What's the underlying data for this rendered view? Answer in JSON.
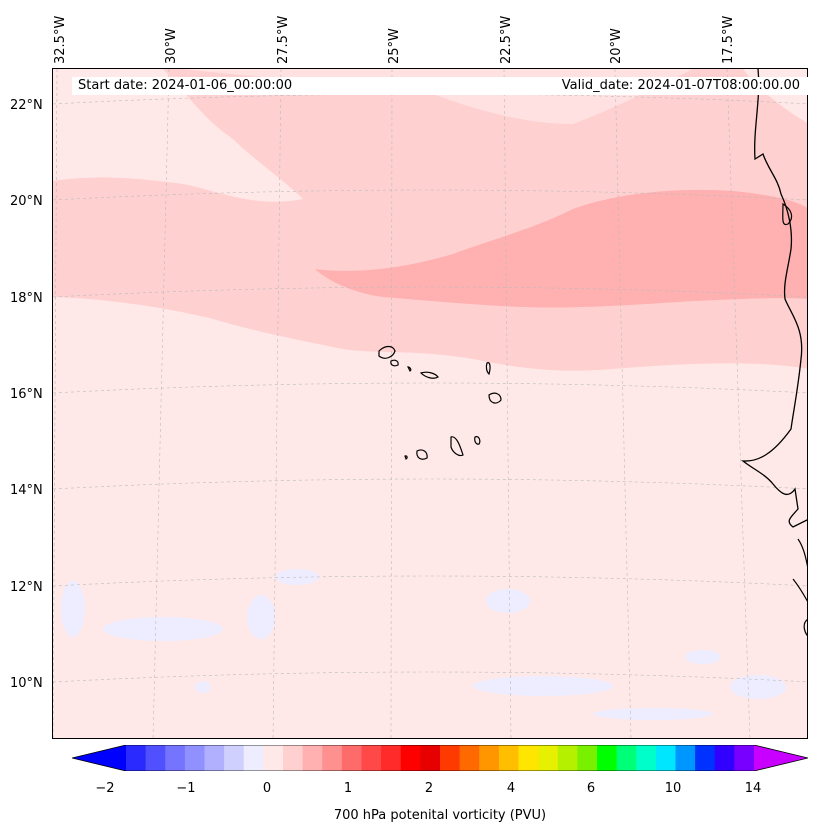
{
  "map": {
    "start_date": "Start date: 2024-01-06_00:00:00",
    "valid_date": "Valid_date: 2024-01-07T08:00:00.00",
    "longitude_labels": [
      "32.5°W",
      "30°W",
      "27.5°W",
      "25°W",
      "22.5°W",
      "20°W",
      "17.5°W"
    ],
    "latitude_labels": [
      "22°N",
      "20°N",
      "18°N",
      "16°N",
      "14°N",
      "12°N",
      "10°N"
    ]
  },
  "colorbar": {
    "label": "700 hPa potenital vorticity (PVU)",
    "tick_labels": [
      "−2",
      "−1",
      "0",
      "1",
      "2",
      "4",
      "6",
      "10",
      "14"
    ],
    "colors": [
      "#0000ff",
      "#2a2aff",
      "#5050ff",
      "#7474ff",
      "#9090ff",
      "#b0b0ff",
      "#d0d0ff",
      "#ededff",
      "#ffe8e8",
      "#ffd0d0",
      "#ffb0b0",
      "#ff9090",
      "#ff6a6a",
      "#ff4848",
      "#ff2a2a",
      "#ff0000",
      "#e60000",
      "#ff3a00",
      "#ff6a00",
      "#ff9600",
      "#ffbe00",
      "#ffe600",
      "#e6f000",
      "#b4f000",
      "#78f000",
      "#00ff00",
      "#00ff78",
      "#00ffc8",
      "#00e6ff",
      "#0096ff",
      "#0032ff",
      "#3200ff",
      "#7800ff",
      "#c800ff"
    ]
  }
}
